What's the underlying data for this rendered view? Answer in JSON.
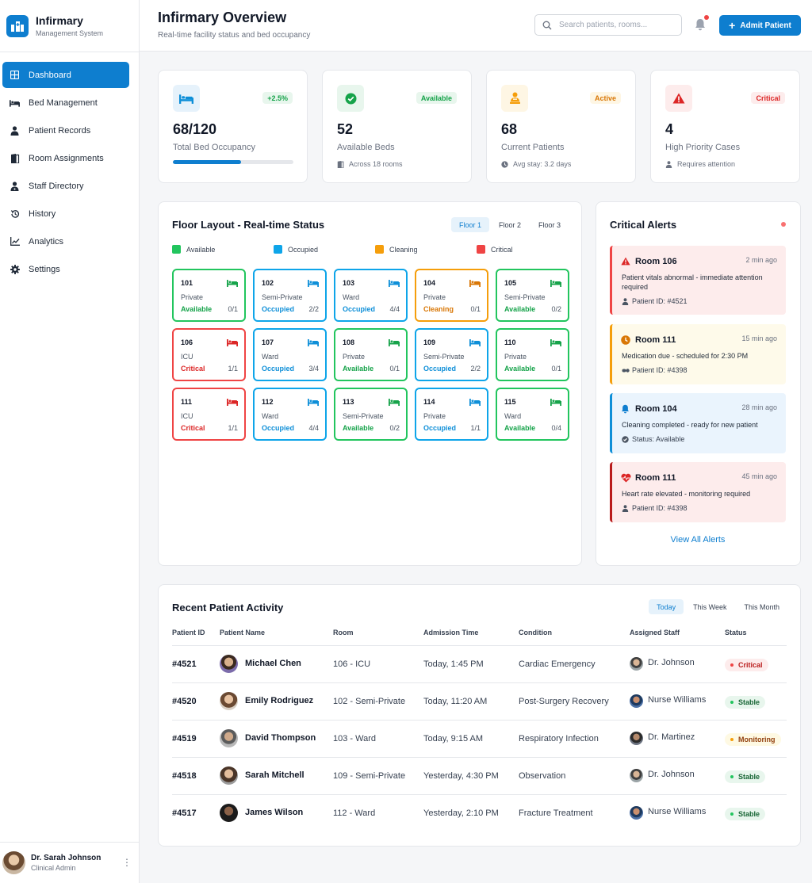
{
  "sidebar": {
    "brand_name": "Infirmary",
    "brand_sub": "Management System",
    "items": [
      {
        "label": "Dashboard"
      },
      {
        "label": "Bed Management"
      },
      {
        "label": "Patient Records"
      },
      {
        "label": "Room Assignments"
      },
      {
        "label": "Staff Directory"
      },
      {
        "label": "History"
      },
      {
        "label": "Analytics"
      },
      {
        "label": "Settings"
      }
    ],
    "user": {
      "name": "Dr. Sarah Johnson",
      "role": "Clinical Admin"
    }
  },
  "header": {
    "title": "Infirmary Overview",
    "subtitle": "Real-time facility status and bed occupancy",
    "search_placeholder": "Search patients, rooms...",
    "admit_label": "Admit Patient"
  },
  "stats": [
    {
      "value": "68/120",
      "label": "Total Bed Occupancy",
      "badge": "+2.5%",
      "progress": 0.567
    },
    {
      "value": "52",
      "label": "Available Beds",
      "badge": "Available",
      "meta": "Across 18 rooms"
    },
    {
      "value": "68",
      "label": "Current Patients",
      "badge": "Active",
      "meta": "Avg stay: 3.2 days"
    },
    {
      "value": "4",
      "label": "High Priority Cases",
      "badge": "Critical",
      "meta": "Requires attention"
    }
  ],
  "floor": {
    "title": "Floor Layout - Real-time Status",
    "tabs": [
      "Floor 1",
      "Floor 2",
      "Floor 3"
    ],
    "legend": [
      "Available",
      "Occupied",
      "Cleaning",
      "Critical"
    ],
    "rooms": [
      {
        "num": "101",
        "type": "Private",
        "status": "Available",
        "occ": "0/1"
      },
      {
        "num": "102",
        "type": "Semi-Private",
        "status": "Occupied",
        "occ": "2/2"
      },
      {
        "num": "103",
        "type": "Ward",
        "status": "Occupied",
        "occ": "4/4"
      },
      {
        "num": "104",
        "type": "Private",
        "status": "Cleaning",
        "occ": "0/1"
      },
      {
        "num": "105",
        "type": "Semi-Private",
        "status": "Available",
        "occ": "0/2"
      },
      {
        "num": "106",
        "type": "ICU",
        "status": "Critical",
        "occ": "1/1"
      },
      {
        "num": "107",
        "type": "Ward",
        "status": "Occupied",
        "occ": "3/4"
      },
      {
        "num": "108",
        "type": "Private",
        "status": "Available",
        "occ": "0/1"
      },
      {
        "num": "109",
        "type": "Semi-Private",
        "status": "Occupied",
        "occ": "2/2"
      },
      {
        "num": "110",
        "type": "Private",
        "status": "Available",
        "occ": "0/1"
      },
      {
        "num": "111",
        "type": "ICU",
        "status": "Critical",
        "occ": "1/1"
      },
      {
        "num": "112",
        "type": "Ward",
        "status": "Occupied",
        "occ": "4/4"
      },
      {
        "num": "113",
        "type": "Semi-Private",
        "status": "Available",
        "occ": "0/2"
      },
      {
        "num": "114",
        "type": "Private",
        "status": "Occupied",
        "occ": "1/1"
      },
      {
        "num": "115",
        "type": "Ward",
        "status": "Available",
        "occ": "0/4"
      }
    ]
  },
  "alerts": {
    "title": "Critical Alerts",
    "view_all": "View All Alerts",
    "items": [
      {
        "room": "Room 106",
        "time": "2 min ago",
        "message": "Patient vitals abnormal - immediate attention required",
        "meta": "Patient ID: #4521"
      },
      {
        "room": "Room 111",
        "time": "15 min ago",
        "message": "Medication due - scheduled for 2:30 PM",
        "meta": "Patient ID: #4398"
      },
      {
        "room": "Room 104",
        "time": "28 min ago",
        "message": "Cleaning completed - ready for new patient",
        "meta": "Status: Available"
      },
      {
        "room": "Room 111",
        "time": "45 min ago",
        "message": "Heart rate elevated - monitoring required",
        "meta": "Patient ID: #4398"
      }
    ]
  },
  "activity": {
    "title": "Recent Patient Activity",
    "tabs": [
      "Today",
      "This Week",
      "This Month"
    ],
    "columns": [
      "Patient ID",
      "Patient Name",
      "Room",
      "Admission Time",
      "Condition",
      "Assigned Staff",
      "Status"
    ],
    "rows": [
      {
        "id": "#4521",
        "name": "Michael Chen",
        "room": "106 - ICU",
        "time": "Today, 1:45 PM",
        "condition": "Cardiac Emergency",
        "staff": "Dr. Johnson",
        "status": "Critical"
      },
      {
        "id": "#4520",
        "name": "Emily Rodriguez",
        "room": "102 - Semi-Private",
        "time": "Today, 11:20 AM",
        "condition": "Post-Surgery Recovery",
        "staff": "Nurse Williams",
        "status": "Stable"
      },
      {
        "id": "#4519",
        "name": "David Thompson",
        "room": "103 - Ward",
        "time": "Today, 9:15 AM",
        "condition": "Respiratory Infection",
        "staff": "Dr. Martinez",
        "status": "Monitoring"
      },
      {
        "id": "#4518",
        "name": "Sarah Mitchell",
        "room": "109 - Semi-Private",
        "time": "Yesterday, 4:30 PM",
        "condition": "Observation",
        "staff": "Dr. Johnson",
        "status": "Stable"
      },
      {
        "id": "#4517",
        "name": "James Wilson",
        "room": "112 - Ward",
        "time": "Yesterday, 2:10 PM",
        "condition": "Fracture Treatment",
        "staff": "Nurse Williams",
        "status": "Stable"
      }
    ]
  },
  "colors": {
    "primary": "#0e7ecf",
    "available": "#16a34a",
    "occupied": "#0e8fd8",
    "cleaning": "#f59e0b",
    "critical": "#dc2626"
  }
}
